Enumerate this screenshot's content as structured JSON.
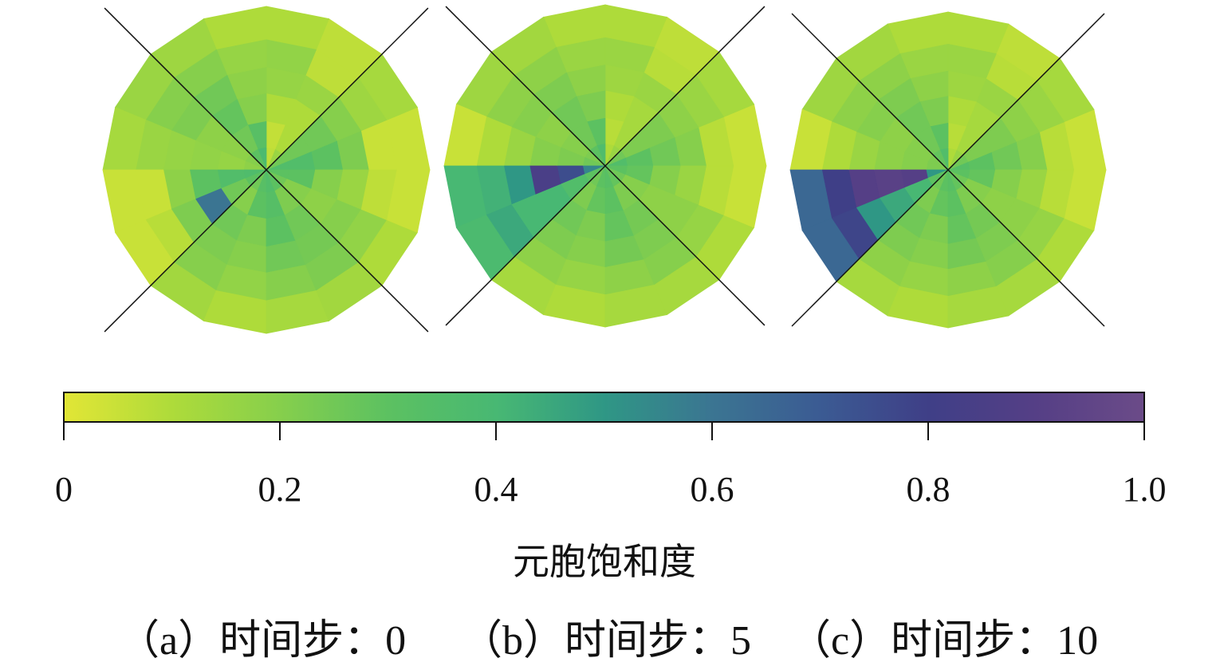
{
  "chart_data": {
    "type": "heatmap",
    "subtype": "polar-mesh",
    "sector_order": "counterclockwise from east, 16 sectors",
    "ring_order": "inner to outer, 6 rings",
    "colorbar": {
      "label": "元胞饱和度",
      "range": [
        0,
        1.0
      ],
      "ticks": [
        "0",
        "0.2",
        "0.4",
        "0.6",
        "0.8",
        "1.0"
      ],
      "tick_values": [
        0,
        0.2,
        0.4,
        0.6,
        0.8,
        1.0
      ],
      "colormap": [
        "#e2e636",
        "#aedb3a",
        "#86cf4c",
        "#5cc161",
        "#48b873",
        "#2f9785",
        "#3b7592",
        "#3b5b93",
        "#3f3f87",
        "#553f86",
        "#6b4b88"
      ]
    },
    "panels": [
      {
        "caption": "（a）时间步：0",
        "values": [
          [
            0.35,
            0.25,
            0.15,
            0.07,
            0.38,
            0.3,
            0.2,
            0.18,
            0.36,
            0.3,
            0.25,
            0.32,
            0.35,
            0.3,
            0.25,
            0.3
          ],
          [
            0.35,
            0.25,
            0.1,
            0.06,
            0.32,
            0.25,
            0.18,
            0.16,
            0.35,
            0.25,
            0.2,
            0.3,
            0.33,
            0.22,
            0.2,
            0.3
          ],
          [
            0.3,
            0.25,
            0.1,
            0.1,
            0.2,
            0.28,
            0.18,
            0.17,
            0.3,
            0.6,
            0.25,
            0.22,
            0.3,
            0.25,
            0.18,
            0.2
          ],
          [
            0.22,
            0.2,
            0.15,
            0.16,
            0.18,
            0.25,
            0.22,
            0.16,
            0.18,
            0.22,
            0.22,
            0.2,
            0.25,
            0.24,
            0.2,
            0.15
          ],
          [
            0.05,
            0.14,
            0.07,
            0.17,
            0.16,
            0.2,
            0.2,
            0.15,
            0.05,
            0.08,
            0.2,
            0.17,
            0.2,
            0.22,
            0.17,
            0.07
          ],
          [
            0.05,
            0.12,
            0.07,
            0.1,
            0.1,
            0.14,
            0.15,
            0.12,
            0.05,
            0.05,
            0.13,
            0.1,
            0.12,
            0.13,
            0.1,
            0.05
          ]
        ]
      },
      {
        "caption": "（b）时间步：5",
        "values": [
          [
            0.35,
            0.25,
            0.15,
            0.1,
            0.36,
            0.3,
            0.22,
            0.25,
            0.55,
            0.3,
            0.25,
            0.3,
            0.32,
            0.28,
            0.25,
            0.3
          ],
          [
            0.3,
            0.22,
            0.12,
            0.08,
            0.3,
            0.25,
            0.2,
            0.22,
            0.75,
            0.35,
            0.22,
            0.28,
            0.3,
            0.22,
            0.2,
            0.28
          ],
          [
            0.25,
            0.22,
            0.12,
            0.1,
            0.22,
            0.25,
            0.18,
            0.2,
            0.85,
            0.4,
            0.25,
            0.22,
            0.28,
            0.24,
            0.18,
            0.2
          ],
          [
            0.2,
            0.18,
            0.15,
            0.14,
            0.18,
            0.22,
            0.2,
            0.15,
            0.5,
            0.4,
            0.22,
            0.2,
            0.24,
            0.22,
            0.18,
            0.15
          ],
          [
            0.08,
            0.15,
            0.08,
            0.15,
            0.15,
            0.18,
            0.18,
            0.1,
            0.42,
            0.45,
            0.18,
            0.16,
            0.18,
            0.2,
            0.16,
            0.08
          ],
          [
            0.05,
            0.12,
            0.07,
            0.1,
            0.1,
            0.13,
            0.14,
            0.05,
            0.4,
            0.38,
            0.12,
            0.1,
            0.12,
            0.12,
            0.1,
            0.05
          ]
        ]
      },
      {
        "caption": "（c）时间步：10",
        "values": [
          [
            0.33,
            0.25,
            0.15,
            0.1,
            0.35,
            0.28,
            0.22,
            0.22,
            0.5,
            0.3,
            0.25,
            0.3,
            0.32,
            0.28,
            0.25,
            0.3
          ],
          [
            0.3,
            0.22,
            0.12,
            0.08,
            0.3,
            0.25,
            0.2,
            0.2,
            0.9,
            0.4,
            0.22,
            0.28,
            0.3,
            0.22,
            0.2,
            0.28
          ],
          [
            0.25,
            0.22,
            0.12,
            0.1,
            0.22,
            0.25,
            0.18,
            0.18,
            0.92,
            0.45,
            0.25,
            0.22,
            0.28,
            0.24,
            0.18,
            0.2
          ],
          [
            0.2,
            0.18,
            0.15,
            0.14,
            0.18,
            0.22,
            0.2,
            0.15,
            0.9,
            0.5,
            0.22,
            0.2,
            0.24,
            0.22,
            0.18,
            0.15
          ],
          [
            0.08,
            0.15,
            0.08,
            0.15,
            0.15,
            0.18,
            0.18,
            0.1,
            0.8,
            0.78,
            0.18,
            0.16,
            0.18,
            0.2,
            0.16,
            0.08
          ],
          [
            0.05,
            0.12,
            0.07,
            0.1,
            0.1,
            0.13,
            0.14,
            0.05,
            0.65,
            0.65,
            0.12,
            0.1,
            0.12,
            0.12,
            0.1,
            0.05
          ]
        ]
      }
    ]
  }
}
